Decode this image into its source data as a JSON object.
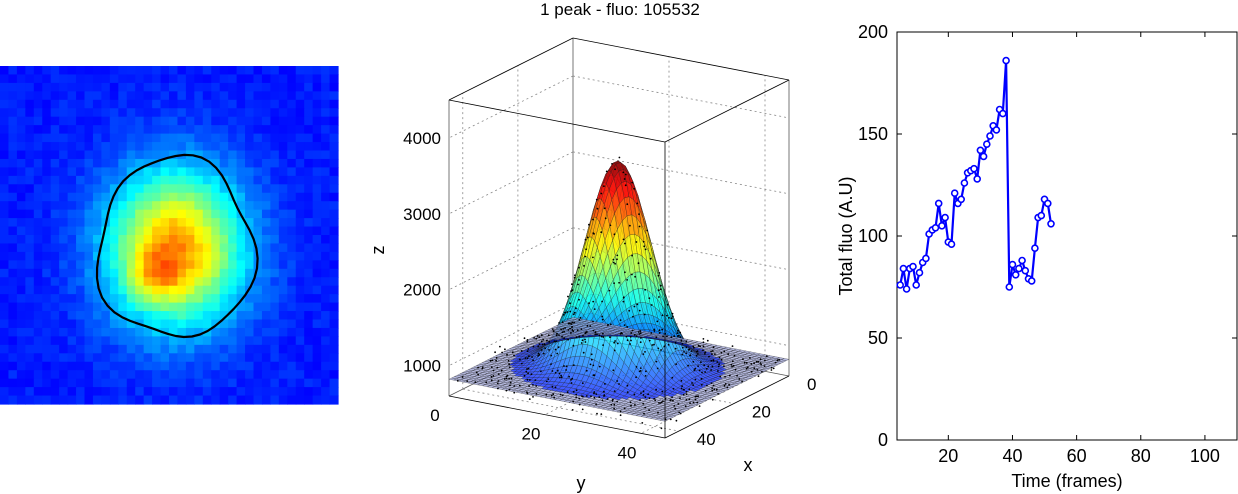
{
  "colors": {
    "line_series": "#0000ff",
    "contour": "#000000",
    "colormap": "jet"
  },
  "chart_data": [
    {
      "type": "heatmap",
      "colormap": "jet",
      "axes_visible": false,
      "grid": false,
      "blob": {
        "cx": 0.52,
        "cy": 0.54,
        "sx": 0.14,
        "sy": 0.16,
        "contour_level": 0.36
      }
    },
    {
      "type": "surface",
      "title": "1 peak - fluo: 105532",
      "xlabel": "x",
      "ylabel": "y",
      "zlabel": "z",
      "x_ticks": [
        "0",
        "20",
        "40"
      ],
      "y_ticks": [
        "0",
        "20",
        "40"
      ],
      "z_ticks": [
        "1000",
        "2000",
        "3000",
        "4000"
      ],
      "xlim": [
        0,
        45
      ],
      "ylim": [
        0,
        45
      ],
      "zlim": [
        600,
        4500
      ],
      "peak": {
        "x": 22,
        "y": 22,
        "z": 3550,
        "sigma": 6,
        "baseline": 820
      },
      "grid": true,
      "box": true
    },
    {
      "type": "line",
      "xlabel": "Time (frames)",
      "ylabel": "Total fluo (A.U)",
      "xlim": [
        4,
        110
      ],
      "ylim": [
        0,
        200
      ],
      "x_ticks": [
        20,
        40,
        60,
        80,
        100
      ],
      "y_ticks": [
        0,
        50,
        100,
        150,
        200
      ],
      "marker": "circle",
      "grid": false,
      "x": [
        5,
        6,
        7,
        8,
        9,
        10,
        11,
        12,
        13,
        14,
        15,
        16,
        17,
        18,
        19,
        20,
        21,
        22,
        23,
        24,
        25,
        26,
        27,
        28,
        29,
        30,
        31,
        32,
        33,
        34,
        35,
        36,
        37,
        38,
        39,
        40,
        41,
        42,
        43,
        44,
        45,
        46,
        47,
        48,
        49,
        50,
        51,
        52
      ],
      "y": [
        76,
        84,
        74,
        84,
        85,
        76,
        82,
        87,
        89,
        101,
        103,
        104,
        116,
        105,
        109,
        97,
        96,
        121,
        116,
        118,
        126,
        131,
        132,
        133,
        128,
        142,
        139,
        145,
        149,
        154,
        152,
        162,
        160,
        186,
        75,
        86,
        81,
        84,
        88,
        83,
        79,
        78,
        94,
        109,
        110,
        118,
        116,
        106
      ]
    }
  ]
}
